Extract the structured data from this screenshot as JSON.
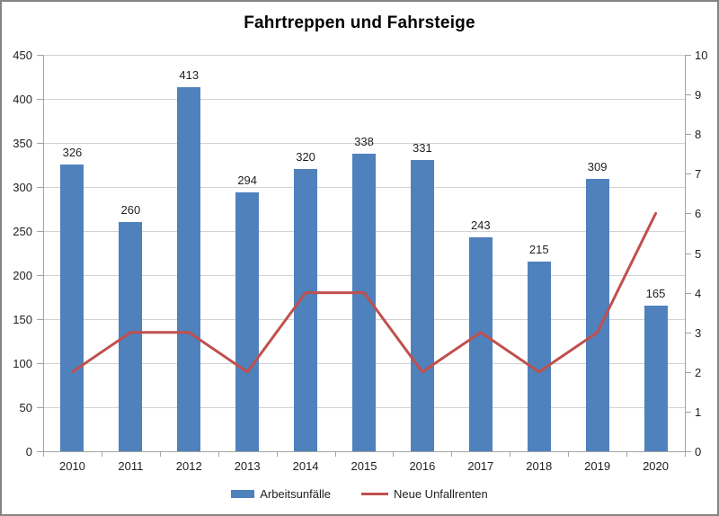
{
  "chart_data": {
    "type": "bar",
    "title": "Fahrtreppen und Fahrsteige",
    "categories": [
      "2010",
      "2011",
      "2012",
      "2013",
      "2014",
      "2015",
      "2016",
      "2017",
      "2018",
      "2019",
      "2020"
    ],
    "series": [
      {
        "name": "Arbeitsunfälle",
        "type": "bar",
        "axis": "left",
        "color": "#4F81BD",
        "values": [
          326,
          260,
          413,
          294,
          320,
          338,
          331,
          243,
          215,
          309,
          165
        ],
        "data_labels": [
          "326",
          "260",
          "413",
          "294",
          "320",
          "338",
          "331",
          "243",
          "215",
          "309",
          "165"
        ]
      },
      {
        "name": "Neue Unfallrenten",
        "type": "line",
        "axis": "right",
        "color": "#C0504D",
        "values": [
          2,
          3,
          3,
          2,
          4,
          4,
          2,
          3,
          2,
          3,
          6
        ]
      }
    ],
    "left_axis": {
      "min": 0,
      "max": 450,
      "step": 50,
      "tick_labels": [
        "0",
        "50",
        "100",
        "150",
        "200",
        "250",
        "300",
        "350",
        "400",
        "450"
      ]
    },
    "right_axis": {
      "min": 0,
      "max": 10,
      "step": 1,
      "tick_labels": [
        "0",
        "1",
        "2",
        "3",
        "4",
        "5",
        "6",
        "7",
        "8",
        "9",
        "10"
      ]
    },
    "grid": "horizontal",
    "legend_position": "bottom",
    "colors": {
      "gridline": "#d2d2d2",
      "axis": "#a3a3a3",
      "text": "#1f1f1f",
      "title": "#000000",
      "background": "#ffffff",
      "border": "#848484"
    }
  }
}
